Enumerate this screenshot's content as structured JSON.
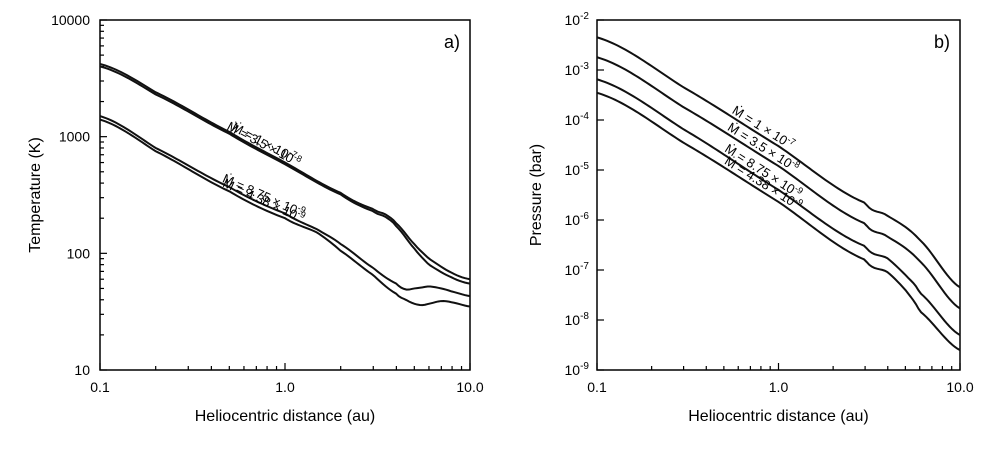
{
  "chart_data": [
    {
      "type": "line",
      "panel_label": "a)",
      "xlabel": "Heliocentric distance (au)",
      "ylabel": "Temperature (K)",
      "xscale": "log",
      "yscale": "log",
      "xlim": [
        0.1,
        10.0
      ],
      "ylim": [
        10,
        10000
      ],
      "x_ticks": [
        {
          "value": 0.1,
          "label": "0.1"
        },
        {
          "value": 1.0,
          "label": "1.0"
        },
        {
          "value": 10.0,
          "label": "10.0"
        }
      ],
      "y_ticks": [
        {
          "value": 10,
          "label": "10"
        },
        {
          "value": 100,
          "label": "100"
        },
        {
          "value": 1000,
          "label": "1000"
        },
        {
          "value": 10000,
          "label": "10000"
        }
      ],
      "series": [
        {
          "name": "Ṁ = 1 × 10⁻⁷",
          "label_text": "Ṁ = 1 × 10",
          "label_exp": "-7",
          "label_at": 0.75,
          "x": [
            0.1,
            0.2,
            0.5,
            1.0,
            2.0,
            3.0,
            3.5,
            4.0,
            5.0,
            6.0,
            8.0,
            10.0
          ],
          "y": [
            4200,
            2400,
            1100,
            600,
            330,
            240,
            215,
            180,
            120,
            90,
            68,
            60
          ]
        },
        {
          "name": "Ṁ = 3.5 × 10⁻⁸",
          "label_text": "Ṁ = 3.5 × 10",
          "label_exp": "-8",
          "label_at": 0.75,
          "x": [
            0.1,
            0.2,
            0.5,
            1.0,
            2.0,
            3.0,
            3.5,
            4.0,
            5.0,
            6.0,
            8.0,
            10.0
          ],
          "y": [
            4000,
            2300,
            1060,
            580,
            320,
            230,
            205,
            170,
            110,
            80,
            62,
            55
          ]
        },
        {
          "name": "Ṁ = 8.75 × 10⁻⁹",
          "label_text": "Ṁ = 8.75 × 10",
          "label_exp": "-9",
          "label_at": 0.75,
          "x": [
            0.1,
            0.2,
            0.5,
            1.0,
            1.5,
            2.0,
            3.0,
            4.0,
            4.5,
            5.0,
            5.5,
            6.0,
            7.0,
            8.0,
            10.0
          ],
          "y": [
            1500,
            800,
            370,
            220,
            160,
            120,
            75,
            55,
            49,
            50,
            51,
            52,
            50,
            47,
            43
          ]
        },
        {
          "name": "Ṁ = 4.38 × 10⁻⁹",
          "label_text": "Ṁ = 4.38 × 10",
          "label_exp": "-9",
          "label_at": 0.75,
          "x": [
            0.1,
            0.2,
            0.5,
            1.0,
            1.5,
            2.0,
            3.0,
            4.0,
            4.5,
            5.0,
            5.5,
            6.0,
            7.0,
            8.0,
            10.0
          ],
          "y": [
            1400,
            750,
            340,
            200,
            150,
            105,
            65,
            45,
            40,
            37,
            36,
            37,
            39,
            38,
            35
          ]
        }
      ]
    },
    {
      "type": "line",
      "panel_label": "b)",
      "xlabel": "Heliocentric distance (au)",
      "ylabel": "Pressure (bar)",
      "xscale": "log",
      "yscale": "log",
      "xlim": [
        0.1,
        10.0
      ],
      "ylim": [
        1e-09,
        0.01
      ],
      "x_ticks": [
        {
          "value": 0.1,
          "label": "0.1"
        },
        {
          "value": 1.0,
          "label": "1.0"
        },
        {
          "value": 10.0,
          "label": "10.0"
        }
      ],
      "y_ticks": [
        {
          "value": 1e-09,
          "base": "10",
          "exp": "-9"
        },
        {
          "value": 1e-08,
          "base": "10",
          "exp": "-8"
        },
        {
          "value": 1e-07,
          "base": "10",
          "exp": "-7"
        },
        {
          "value": 1e-06,
          "base": "10",
          "exp": "-6"
        },
        {
          "value": 1e-05,
          "base": "10",
          "exp": "-5"
        },
        {
          "value": 0.0001,
          "base": "10",
          "exp": "-4"
        },
        {
          "value": 0.001,
          "base": "10",
          "exp": "-3"
        },
        {
          "value": 0.01,
          "base": "10",
          "exp": "-2"
        }
      ],
      "series": [
        {
          "name": "Ṁ = 1 × 10⁻⁷",
          "label_text": "Ṁ = 1 × 10",
          "label_exp": "-7",
          "label_at": 0.8,
          "x": [
            0.1,
            0.3,
            1.0,
            3.0,
            4.0,
            6.0,
            10.0
          ],
          "y": [
            0.0045,
            0.00045,
            3e-05,
            2.2e-06,
            1.2e-06,
            4e-07,
            4.5e-08
          ]
        },
        {
          "name": "Ṁ = 3.5 × 10⁻⁸",
          "label_text": "Ṁ = 3.5 × 10",
          "label_exp": "-8",
          "label_at": 0.8,
          "x": [
            0.1,
            0.3,
            1.0,
            3.0,
            4.0,
            6.0,
            10.0
          ],
          "y": [
            0.0018,
            0.00018,
            1.2e-05,
            8.5e-07,
            4.6e-07,
            1.5e-07,
            1.7e-08
          ]
        },
        {
          "name": "Ṁ = 8.75 × 10⁻⁹",
          "label_text": "Ṁ = 8.75 × 10",
          "label_exp": "-9",
          "label_at": 0.8,
          "x": [
            0.1,
            0.3,
            1.0,
            3.0,
            4.0,
            5.0,
            6.0,
            10.0
          ],
          "y": [
            0.00065,
            6.5e-05,
            4e-06,
            3e-07,
            1.7e-07,
            8e-08,
            3.5e-08,
            5e-09
          ]
        },
        {
          "name": "Ṁ = 4.38 × 10⁻⁹",
          "label_text": "Ṁ = 4.38 × 10",
          "label_exp": "-9",
          "label_at": 0.8,
          "x": [
            0.1,
            0.3,
            1.0,
            3.0,
            4.0,
            5.0,
            6.0,
            10.0
          ],
          "y": [
            0.00035,
            3.5e-05,
            2.3e-06,
            1.6e-07,
            9e-08,
            4e-08,
            1.5e-08,
            2.5e-09
          ]
        }
      ]
    }
  ]
}
